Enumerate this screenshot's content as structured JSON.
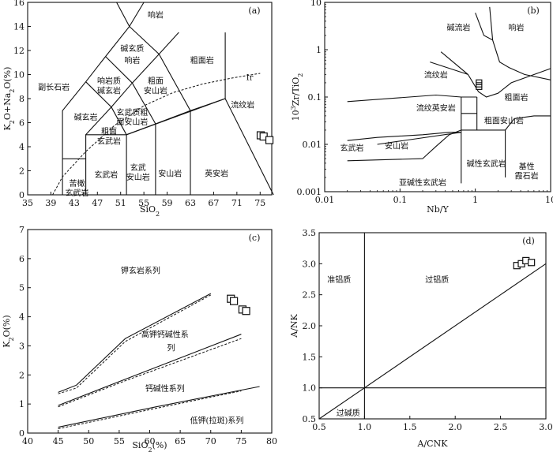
{
  "chart_data": [
    {
      "id": "a",
      "type": "scatter",
      "panel_label": "(a)",
      "xlabel": "SiO2",
      "ylabel": "K2O+Na2O(%)",
      "xlim": [
        35,
        77
      ],
      "ylim": [
        0,
        16
      ],
      "x_ticks": [
        35,
        39,
        43,
        47,
        51,
        55,
        59,
        63,
        67,
        71,
        75
      ],
      "y_ticks": [
        0,
        2,
        4,
        6,
        8,
        10,
        12,
        14,
        16
      ],
      "field_labels": [
        {
          "text": "响岩",
          "x": 57.0,
          "y": 15.0
        },
        {
          "text": "碱玄质",
          "x": 53.0,
          "y": 12.2
        },
        {
          "text": "响岩",
          "x": 53.0,
          "y": 11.2
        },
        {
          "text": "粗面岩",
          "x": 65.0,
          "y": 11.2
        },
        {
          "text": "响岩质",
          "x": 49.0,
          "y": 9.5
        },
        {
          "text": "碱玄岩",
          "x": 49.0,
          "y": 8.7
        },
        {
          "text": "粗面",
          "x": 57.0,
          "y": 9.5
        },
        {
          "text": "安山岩",
          "x": 57.0,
          "y": 8.7
        },
        {
          "text": "副长石岩",
          "x": 39.5,
          "y": 9.0
        },
        {
          "text": "流纹岩",
          "x": 72.0,
          "y": 7.5
        },
        {
          "text": "碱玄岩",
          "x": 45.0,
          "y": 6.5
        },
        {
          "text": "玄武质粗",
          "x": 53.0,
          "y": 6.9
        },
        {
          "text": "面安山岩",
          "x": 53.0,
          "y": 6.1
        },
        {
          "text": "粗面",
          "x": 49.0,
          "y": 5.3
        },
        {
          "text": "玄武岩",
          "x": 49.0,
          "y": 4.5
        },
        {
          "text": "玄武岩",
          "x": 48.5,
          "y": 1.7
        },
        {
          "text": "玄武",
          "x": 54.0,
          "y": 2.3
        },
        {
          "text": "安山岩",
          "x": 54.0,
          "y": 1.5
        },
        {
          "text": "安山岩",
          "x": 59.5,
          "y": 1.8
        },
        {
          "text": "英安岩",
          "x": 67.5,
          "y": 1.8
        },
        {
          "text": "苦橄",
          "x": 43.5,
          "y": 1.0
        },
        {
          "text": "玄武岩",
          "x": 43.5,
          "y": 0.2
        },
        {
          "text": "Ir",
          "x": 73.2,
          "y": 9.8
        }
      ],
      "points": [
        [
          75.1,
          4.95
        ],
        [
          75.6,
          4.85
        ],
        [
          76.6,
          4.55
        ]
      ]
    },
    {
      "id": "b",
      "type": "scatter",
      "panel_label": "(b)",
      "xlabel": "Nb/Y",
      "ylabel": "10^3Zr/TiO2",
      "xscale": "log",
      "yscale": "log",
      "xlim": [
        0.01,
        10
      ],
      "ylim": [
        0.001,
        10
      ],
      "x_ticks": [
        0.01,
        0.1,
        1,
        10
      ],
      "x_tick_labels": [
        "0.01",
        "0.1",
        "1",
        "10"
      ],
      "y_ticks": [
        0.001,
        0.01,
        0.1,
        1,
        10
      ],
      "y_tick_labels": [
        "0.001",
        "0.01",
        "0.1",
        "1",
        "10"
      ],
      "field_labels": [
        {
          "text": "碱流岩",
          "x": 0.6,
          "y": 3.0
        },
        {
          "text": "响岩",
          "x": 3.5,
          "y": 3.0
        },
        {
          "text": "流纹岩",
          "x": 0.3,
          "y": 0.3
        },
        {
          "text": "粗面岩",
          "x": 3.5,
          "y": 0.1
        },
        {
          "text": "流纹英安岩",
          "x": 0.3,
          "y": 0.06
        },
        {
          "text": "粗面安山岩",
          "x": 2.4,
          "y": 0.032
        },
        {
          "text": "玄武岩",
          "x": 0.023,
          "y": 0.0085
        },
        {
          "text": "安山岩",
          "x": 0.09,
          "y": 0.0095
        },
        {
          "text": "碱性玄武岩",
          "x": 1.4,
          "y": 0.004
        },
        {
          "text": "基性",
          "x": 4.8,
          "y": 0.0035
        },
        {
          "text": "霞石岩",
          "x": 4.8,
          "y": 0.0022
        },
        {
          "text": "亚碱性玄武岩",
          "x": 0.2,
          "y": 0.0016
        }
      ],
      "points": [
        [
          1.12,
          0.155
        ],
        [
          1.12,
          0.175
        ],
        [
          1.12,
          0.195
        ],
        [
          1.12,
          0.215
        ]
      ]
    },
    {
      "id": "c",
      "type": "scatter",
      "panel_label": "(c)",
      "xlabel": "SiO2(%)",
      "ylabel": "K2O(%)",
      "xlim": [
        40,
        80
      ],
      "ylim": [
        0,
        7
      ],
      "x_ticks": [
        40,
        45,
        50,
        55,
        60,
        65,
        70,
        75,
        80
      ],
      "y_ticks": [
        0,
        1,
        2,
        3,
        4,
        5,
        6,
        7
      ],
      "field_labels": [
        {
          "text": "钾玄岩系列",
          "x": 58.5,
          "y": 5.6
        },
        {
          "text": "高钾钙碱性系",
          "x": 62.5,
          "y": 3.4
        },
        {
          "text": "列",
          "x": 63.5,
          "y": 2.95
        },
        {
          "text": "钙碱性系列",
          "x": 62.5,
          "y": 1.55
        },
        {
          "text": "低钾(拉斑)系列",
          "x": 71.0,
          "y": 0.45
        }
      ],
      "points": [
        [
          73.3,
          4.62
        ],
        [
          73.8,
          4.54
        ],
        [
          75.2,
          4.25
        ],
        [
          75.8,
          4.2
        ]
      ]
    },
    {
      "id": "d",
      "type": "scatter",
      "panel_label": "(d)",
      "xlabel": "A/CNK",
      "ylabel": "A/NK",
      "xlim": [
        0.5,
        3.0
      ],
      "ylim": [
        0.5,
        3.5
      ],
      "x_ticks": [
        0.5,
        1.0,
        1.5,
        2.0,
        2.5,
        3.0
      ],
      "x_tick_labels": [
        "0.5",
        "1.0",
        "1.5",
        "2.0",
        "2.5",
        "3.0"
      ],
      "y_ticks": [
        0.5,
        1.0,
        1.5,
        2.0,
        2.5,
        3.0,
        3.5
      ],
      "y_tick_labels": [
        "0.5",
        "1.0",
        "1.5",
        "2.0",
        "2.5",
        "3.0",
        "3.5"
      ],
      "field_labels": [
        {
          "text": "准铝质",
          "x": 0.72,
          "y": 2.75
        },
        {
          "text": "过铝质",
          "x": 1.8,
          "y": 2.75
        },
        {
          "text": "过碱质",
          "x": 0.82,
          "y": 0.6
        }
      ],
      "points": [
        [
          2.68,
          2.97
        ],
        [
          2.73,
          3.0
        ],
        [
          2.78,
          3.05
        ],
        [
          2.84,
          3.02
        ]
      ]
    }
  ]
}
